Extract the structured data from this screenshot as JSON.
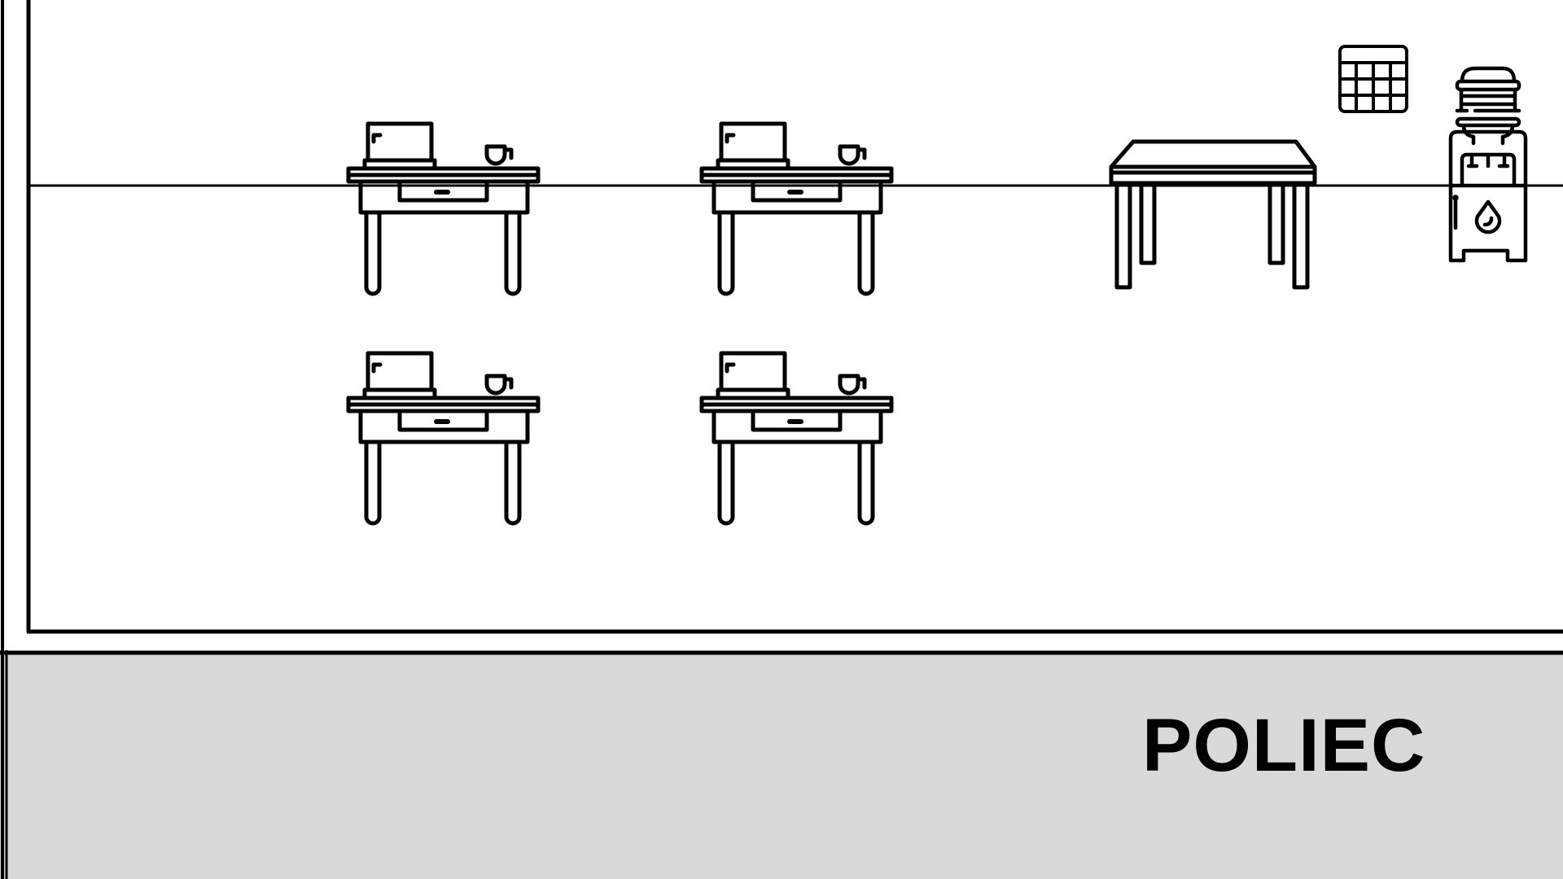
{
  "room": {
    "label": "POLIEC"
  },
  "colors": {
    "background": "#ffffff",
    "lines": "#000000",
    "bottom_panel": "#d9d9d9"
  },
  "objects": {
    "desks": [
      "desk-with-laptop-icon",
      "desk-with-laptop-icon",
      "desk-with-laptop-icon",
      "desk-with-laptop-icon"
    ],
    "table": "table-icon",
    "wall_calendar": "calendar-icon",
    "water_cooler": "water-cooler-icon"
  }
}
